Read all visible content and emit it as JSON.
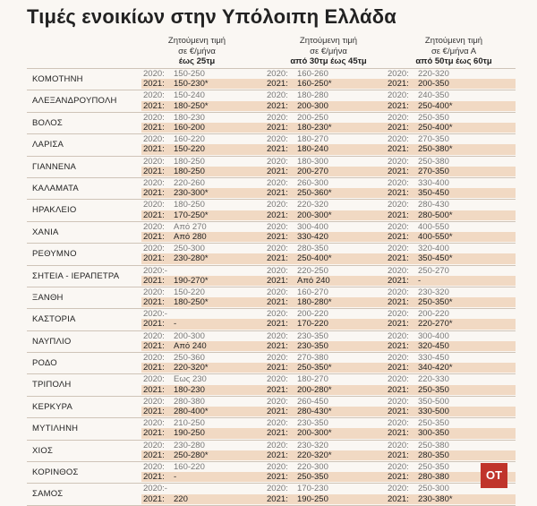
{
  "title": "Τιμές ενοικίων στην Υπόλοιπη Ελλάδα",
  "columns": [
    {
      "line1": "Ζητούμενη τιμή",
      "line2": "σε €/μήνα",
      "line3": "έως 25τμ"
    },
    {
      "line1": "Ζητούμενη τιμή",
      "line2": "σε €/μήνα",
      "line3": "από 30τμ έως 45τμ"
    },
    {
      "line1": "Ζητούμενη τιμή",
      "line2": "σε €/μήνα Α",
      "line3": "από 50τμ έως 60τμ"
    }
  ],
  "rows": [
    {
      "city": "ΚΟΜΟΤΗΝΗ",
      "a1": "2020:",
      "a2": "150-250",
      "b1": "2021:",
      "b2": "150-230*",
      "c1": "2020:",
      "c2": "160-260",
      "d1": "2021:",
      "d2": "160-250*",
      "e1": "2020:",
      "e2": "220-320",
      "f1": "2021:",
      "f2": "200-350"
    },
    {
      "city": "ΑΛΕΞΑΝΔΡΟΥΠΟΛΗ",
      "a1": "2020:",
      "a2": "150-240",
      "b1": "2021:",
      "b2": "180-250*",
      "c1": "2020:",
      "c2": "180-280",
      "d1": "2021:",
      "d2": "200-300",
      "e1": "2020:",
      "e2": "240-350",
      "f1": "2021:",
      "f2": "250-400*"
    },
    {
      "city": "ΒΟΛΟΣ",
      "a1": "2020:",
      "a2": "180-230",
      "b1": "2021:",
      "b2": "160-200",
      "c1": "2020:",
      "c2": "200-250",
      "d1": "2021:",
      "d2": "180-230*",
      "e1": "2020:",
      "e2": "250-350",
      "f1": "2021:",
      "f2": "250-400*"
    },
    {
      "city": "ΛΑΡΙΣΑ",
      "a1": "2020:",
      "a2": "160-220",
      "b1": "2021:",
      "b2": "150-220",
      "c1": "2020:",
      "c2": "180-270",
      "d1": "2021:",
      "d2": "180-240",
      "e1": "2020:",
      "e2": "270-350",
      "f1": "2021:",
      "f2": "250-380*"
    },
    {
      "city": "ΓΙΑΝΝΕΝΑ",
      "a1": "2020:",
      "a2": "180-250",
      "b1": "2021:",
      "b2": "180-250",
      "c1": "2020:",
      "c2": "180-300",
      "d1": "2021:",
      "d2": "200-270",
      "e1": "2020:",
      "e2": "250-380",
      "f1": "2021:",
      "f2": "270-350"
    },
    {
      "city": "ΚΑΛΑΜΑΤΑ",
      "a1": "2020:",
      "a2": "220-260",
      "b1": "2021:",
      "b2": "230-300*",
      "c1": "2020:",
      "c2": "260-300",
      "d1": "2021:",
      "d2": "250-360*",
      "e1": "2020:",
      "e2": "330-400",
      "f1": "2021:",
      "f2": "350-450"
    },
    {
      "city": "ΗΡΑΚΛΕΙΟ",
      "a1": "2020:",
      "a2": "180-250",
      "b1": "2021:",
      "b2": "170-250*",
      "c1": "2020:",
      "c2": "220-320",
      "d1": "2021:",
      "d2": "200-300*",
      "e1": "2020:",
      "e2": "280-430",
      "f1": "2021:",
      "f2": "280-500*"
    },
    {
      "city": "ΧΑΝΙΑ",
      "a1": "2020:",
      "a2": "Από 270",
      "b1": "2021:",
      "b2": "Από 280",
      "c1": "2020:",
      "c2": "300-400",
      "d1": "2021:",
      "d2": "330-420",
      "e1": "2020:",
      "e2": "400-550",
      "f1": "2021:",
      "f2": "400-550*"
    },
    {
      "city": "ΡΕΘΥΜΝΟ",
      "a1": "2020:",
      "a2": "250-300",
      "b1": "2021:",
      "b2": "230-280*",
      "c1": "2020:",
      "c2": "280-350",
      "d1": "2021:",
      "d2": "250-400*",
      "e1": "2020:",
      "e2": "320-400",
      "f1": "2021:",
      "f2": "350-450*"
    },
    {
      "city": "ΣΗΤΕΙΑ - ΙΕΡΑΠΕΤΡΑ",
      "a1": "2020:-",
      "a2": "",
      "b1": "2021:",
      "b2": "190-270*",
      "c1": "2020:",
      "c2": "220-250",
      "d1": "2021:",
      "d2": "Από 240",
      "e1": "2020:",
      "e2": "250-270",
      "f1": "2021:",
      "f2": "-"
    },
    {
      "city": "ΞΑΝΘΗ",
      "a1": "2020:",
      "a2": "150-220",
      "b1": "2021:",
      "b2": "180-250*",
      "c1": "2020:",
      "c2": "160-270",
      "d1": "2021:",
      "d2": "180-280*",
      "e1": "2020:",
      "e2": "230-320",
      "f1": "2021:",
      "f2": "250-350*"
    },
    {
      "city": "ΚΑΣΤΟΡΙΑ",
      "a1": "2020:-",
      "a2": "",
      "b1": "2021:",
      "b2": "-",
      "c1": "2020:",
      "c2": "200-220",
      "d1": "2021:",
      "d2": "170-220",
      "e1": "2020:",
      "e2": "200-220",
      "f1": "2021:",
      "f2": "220-270*"
    },
    {
      "city": "ΝΑΥΠΛΙΟ",
      "a1": "2020:",
      "a2": "200-300",
      "b1": "2021:",
      "b2": "Από 240",
      "c1": "2020:",
      "c2": "230-350",
      "d1": "2021:",
      "d2": "230-350",
      "e1": "2020:",
      "e2": "300-400",
      "f1": "2021:",
      "f2": "320-450"
    },
    {
      "city": "ΡΟΔΟ",
      "a1": "2020:",
      "a2": "250-360",
      "b1": "2021:",
      "b2": "220-320*",
      "c1": "2020:",
      "c2": "270-380",
      "d1": "2021:",
      "d2": "250-350*",
      "e1": "2020:",
      "e2": "330-450",
      "f1": "2021:",
      "f2": "340-420*"
    },
    {
      "city": "ΤΡΙΠΟΛΗ",
      "a1": "2020:",
      "a2": "Εως 230",
      "b1": "2021:",
      "b2": "180-230",
      "c1": "2020:",
      "c2": "180-270",
      "d1": "2021:",
      "d2": "200-280*",
      "e1": "2020:",
      "e2": "220-330",
      "f1": "2021:",
      "f2": "250-350"
    },
    {
      "city": "ΚΕΡΚΥΡΑ",
      "a1": "2020:",
      "a2": "280-380",
      "b1": "2021:",
      "b2": "280-400*",
      "c1": "2020:",
      "c2": "260-450",
      "d1": "2021:",
      "d2": "280-430*",
      "e1": "2020:",
      "e2": "350-500",
      "f1": "2021:",
      "f2": "330-500"
    },
    {
      "city": "ΜΥΤΙΛΗΝΗ",
      "a1": "2020:",
      "a2": "210-250",
      "b1": "2021:",
      "b2": "190-250",
      "c1": "2020:",
      "c2": "230-350",
      "d1": "2021:",
      "d2": "200-300*",
      "e1": "2020:",
      "e2": "250-350",
      "f1": "2021:",
      "f2": "300-350"
    },
    {
      "city": "ΧΙΟΣ",
      "a1": "2020:",
      "a2": "230-280",
      "b1": "2021:",
      "b2": "250-280*",
      "c1": "2020:",
      "c2": "230-320",
      "d1": "2021:",
      "d2": "220-320*",
      "e1": "2020:",
      "e2": "250-380",
      "f1": "2021:",
      "f2": "280-350"
    },
    {
      "city": "ΚΟΡΙΝΘΟΣ",
      "a1": "2020:",
      "a2": "160-220",
      "b1": "2021:",
      "b2": "-",
      "c1": "2020:",
      "c2": "220-300",
      "d1": "2021:",
      "d2": "250-350",
      "e1": "2020:",
      "e2": "250-350",
      "f1": "2021:",
      "f2": "280-380"
    },
    {
      "city": "ΣΑΜΟΣ",
      "a1": "2020:-",
      "a2": "",
      "b1": "2021:",
      "b2": "220",
      "c1": "2020:",
      "c2": "170-230",
      "d1": "2021:",
      "d2": "190-250",
      "e1": "2020:",
      "e2": "250-300",
      "f1": "2021:",
      "f2": "230-380*"
    }
  ],
  "logo": "OT"
}
